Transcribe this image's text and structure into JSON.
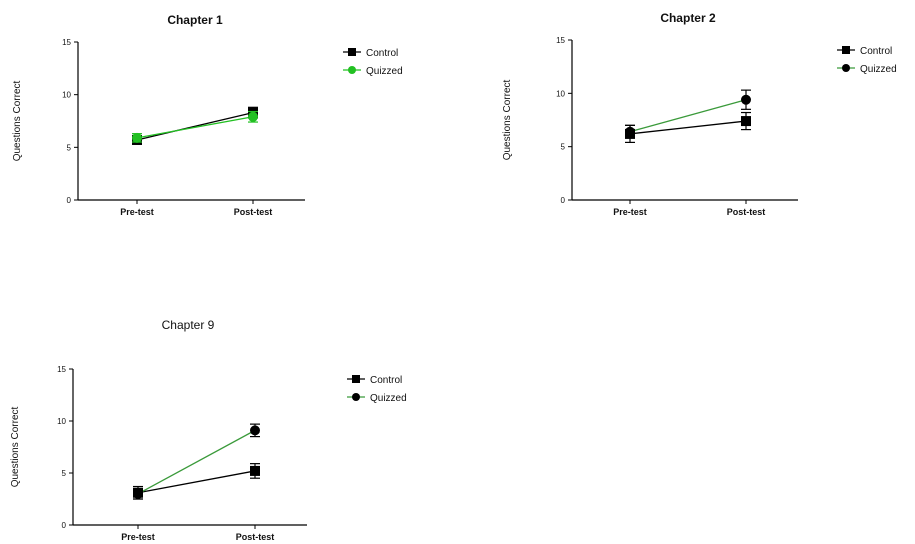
{
  "chart_data": [
    {
      "type": "line",
      "title": "Chapter 1",
      "ylabel": "Questions Correct",
      "xlabel": "",
      "categories": [
        "Pre-test",
        "Post-test"
      ],
      "ylim": [
        0,
        15
      ],
      "yticks": [
        0,
        5,
        10,
        15
      ],
      "ytick_labels": [
        "0",
        "5",
        "10",
        "15"
      ],
      "grid": false,
      "legend_position": "top-right",
      "series": [
        {
          "name": "Control",
          "marker": "square",
          "color": "#000000",
          "values": [
            5.7,
            8.3
          ],
          "errors": [
            0.4,
            0.5
          ]
        },
        {
          "name": "Quizzed",
          "marker": "circle",
          "color": "#22c022",
          "values": [
            5.9,
            7.9
          ],
          "errors": [
            0.4,
            0.5
          ]
        }
      ]
    },
    {
      "type": "line",
      "title": "Chapter 2",
      "ylabel": "Questions Correct",
      "xlabel": "",
      "categories": [
        "Pre-test",
        "Post-test"
      ],
      "ylim": [
        0,
        15
      ],
      "yticks": [
        0,
        5,
        10,
        15
      ],
      "ytick_labels": [
        "0",
        "5",
        "10",
        "15"
      ],
      "grid": false,
      "legend_position": "top-right",
      "series": [
        {
          "name": "Control",
          "marker": "square",
          "color": "#000000",
          "values": [
            6.2,
            7.4
          ],
          "errors": [
            0.8,
            0.8
          ]
        },
        {
          "name": "Quizzed",
          "marker": "circle",
          "color": "#000000",
          "line_color": "#3a9a3a",
          "values": [
            6.4,
            9.4
          ],
          "errors": [
            0.6,
            0.9
          ]
        }
      ]
    },
    {
      "type": "line",
      "title": "Chapter 9",
      "ylabel": "Questions Correct",
      "xlabel": "",
      "categories": [
        "Pre-test",
        "Post-test"
      ],
      "ylim": [
        0,
        15
      ],
      "yticks": [
        0,
        5,
        10,
        15
      ],
      "ytick_labels": [
        "0",
        "5",
        "10",
        "15"
      ],
      "grid": false,
      "legend_position": "top-right",
      "series": [
        {
          "name": "Control",
          "marker": "square",
          "color": "#000000",
          "values": [
            3.1,
            5.2
          ],
          "errors": [
            0.6,
            0.7
          ]
        },
        {
          "name": "Quizzed",
          "marker": "circle",
          "color": "#000000",
          "line_color": "#3a9a3a",
          "values": [
            3.0,
            9.1
          ],
          "errors": [
            0.5,
            0.6
          ]
        }
      ]
    }
  ]
}
